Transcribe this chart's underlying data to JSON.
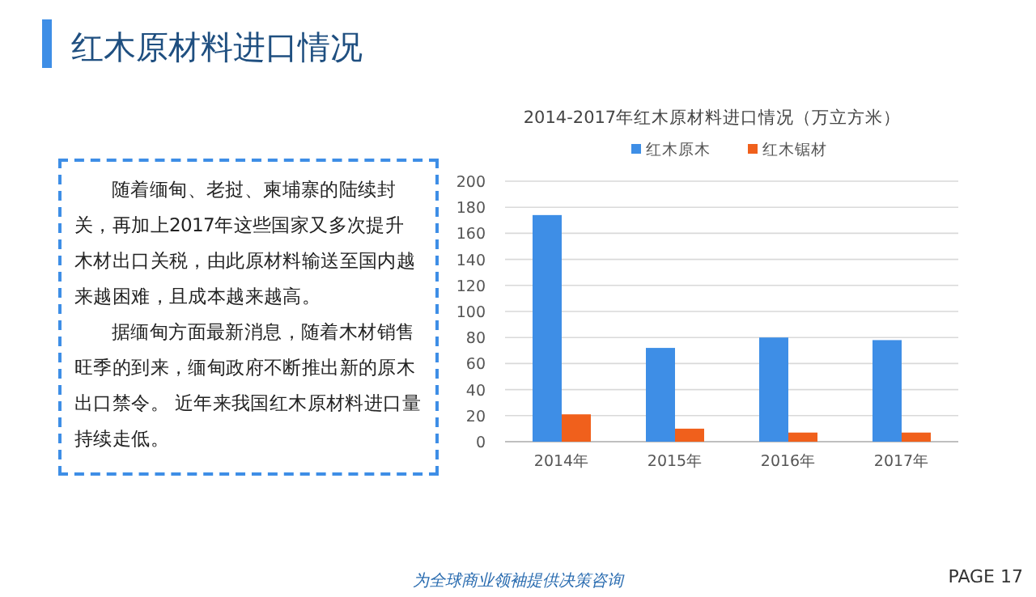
{
  "chart_data": [
    {
      "type": "other",
      "title": "红木原材料进口情况",
      "annotations": [
        "随着缅甸、老挝、柬埔寨的陆续封关，再加上2017年这些国家又多次提升木材出口关税，由此原材料输送至国内越来越困难，且成本越来越高。",
        "据缅甸方面最新消息，随着木材销售旺季的到来，缅甸政府不断推出新的原木出口禁令。 近年来我国红木原材料进口量持续走低。",
        "为全球商业领袖提供决策咨询",
        "PAGE 17"
      ]
    },
    {
      "type": "bar",
      "title": "2014-2017年红木原材料进口情况（万立方米）",
      "categories": [
        "2014年",
        "2015年",
        "2016年",
        "2017年"
      ],
      "series": [
        {
          "name": "红木原木",
          "color": "#3e8ee6",
          "values": [
            174,
            72,
            80,
            78
          ]
        },
        {
          "name": "红木锯材",
          "color": "#f0601c",
          "values": [
            21,
            10,
            7,
            7
          ]
        }
      ],
      "ylim": [
        0,
        200
      ],
      "yticks": [
        0,
        20,
        40,
        60,
        80,
        100,
        120,
        140,
        160,
        180,
        200
      ],
      "grid": "y",
      "legend": "top"
    }
  ]
}
